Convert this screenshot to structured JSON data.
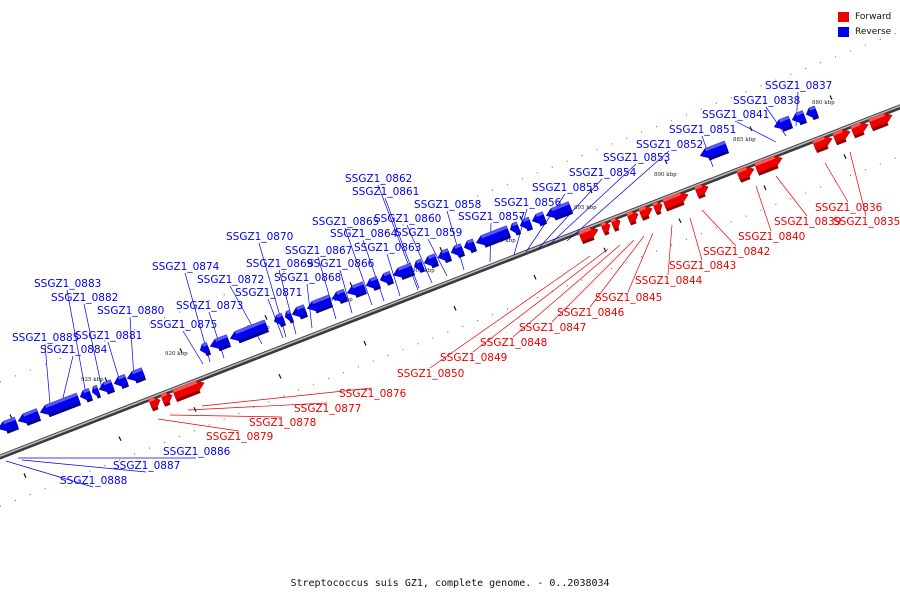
{
  "caption": "Streptococcus suis GZ1, complete genome. - 0..2038034",
  "legend": {
    "forward_label": "Forward",
    "reverse_label": "Reverse",
    "forward_color": "#ee0000",
    "reverse_color": "#0000ee"
  },
  "ticks": [
    "880 kbp",
    "885 kbp",
    "890 kbp",
    "895 kbp",
    "900 kbp",
    "905 kbp",
    "910 kbp",
    "915 kbp",
    "920 kbp",
    "925 kbp"
  ],
  "genes": {
    "forward": [
      "SSGZ1_0835",
      "SSGZ1_0836",
      "SSGZ1_0839",
      "SSGZ1_0840",
      "SSGZ1_0842",
      "SSGZ1_0843",
      "SSGZ1_0844",
      "SSGZ1_0845",
      "SSGZ1_0846",
      "SSGZ1_0847",
      "SSGZ1_0848",
      "SSGZ1_0849",
      "SSGZ1_0850",
      "SSGZ1_0876",
      "SSGZ1_0877",
      "SSGZ1_0878",
      "SSGZ1_0879"
    ],
    "reverse": [
      "SSGZ1_0837",
      "SSGZ1_0838",
      "SSGZ1_0841",
      "SSGZ1_0851",
      "SSGZ1_0852",
      "SSGZ1_0853",
      "SSGZ1_0854",
      "SSGZ1_0855",
      "SSGZ1_0856",
      "SSGZ1_0857",
      "SSGZ1_0858",
      "SSGZ1_0859",
      "SSGZ1_0860",
      "SSGZ1_0861",
      "SSGZ1_0862",
      "SSGZ1_0863",
      "SSGZ1_0864",
      "SSGZ1_0865",
      "SSGZ1_0866",
      "SSGZ1_0867",
      "SSGZ1_0868",
      "SSGZ1_0869",
      "SSGZ1_0870",
      "SSGZ1_0871",
      "SSGZ1_0872",
      "SSGZ1_0873",
      "SSGZ1_0874",
      "SSGZ1_0875",
      "SSGZ1_0880",
      "SSGZ1_0881",
      "SSGZ1_0882",
      "SSGZ1_0883",
      "SSGZ1_0884",
      "SSGZ1_0885",
      "SSGZ1_0886",
      "SSGZ1_0887",
      "SSGZ1_0888"
    ]
  }
}
